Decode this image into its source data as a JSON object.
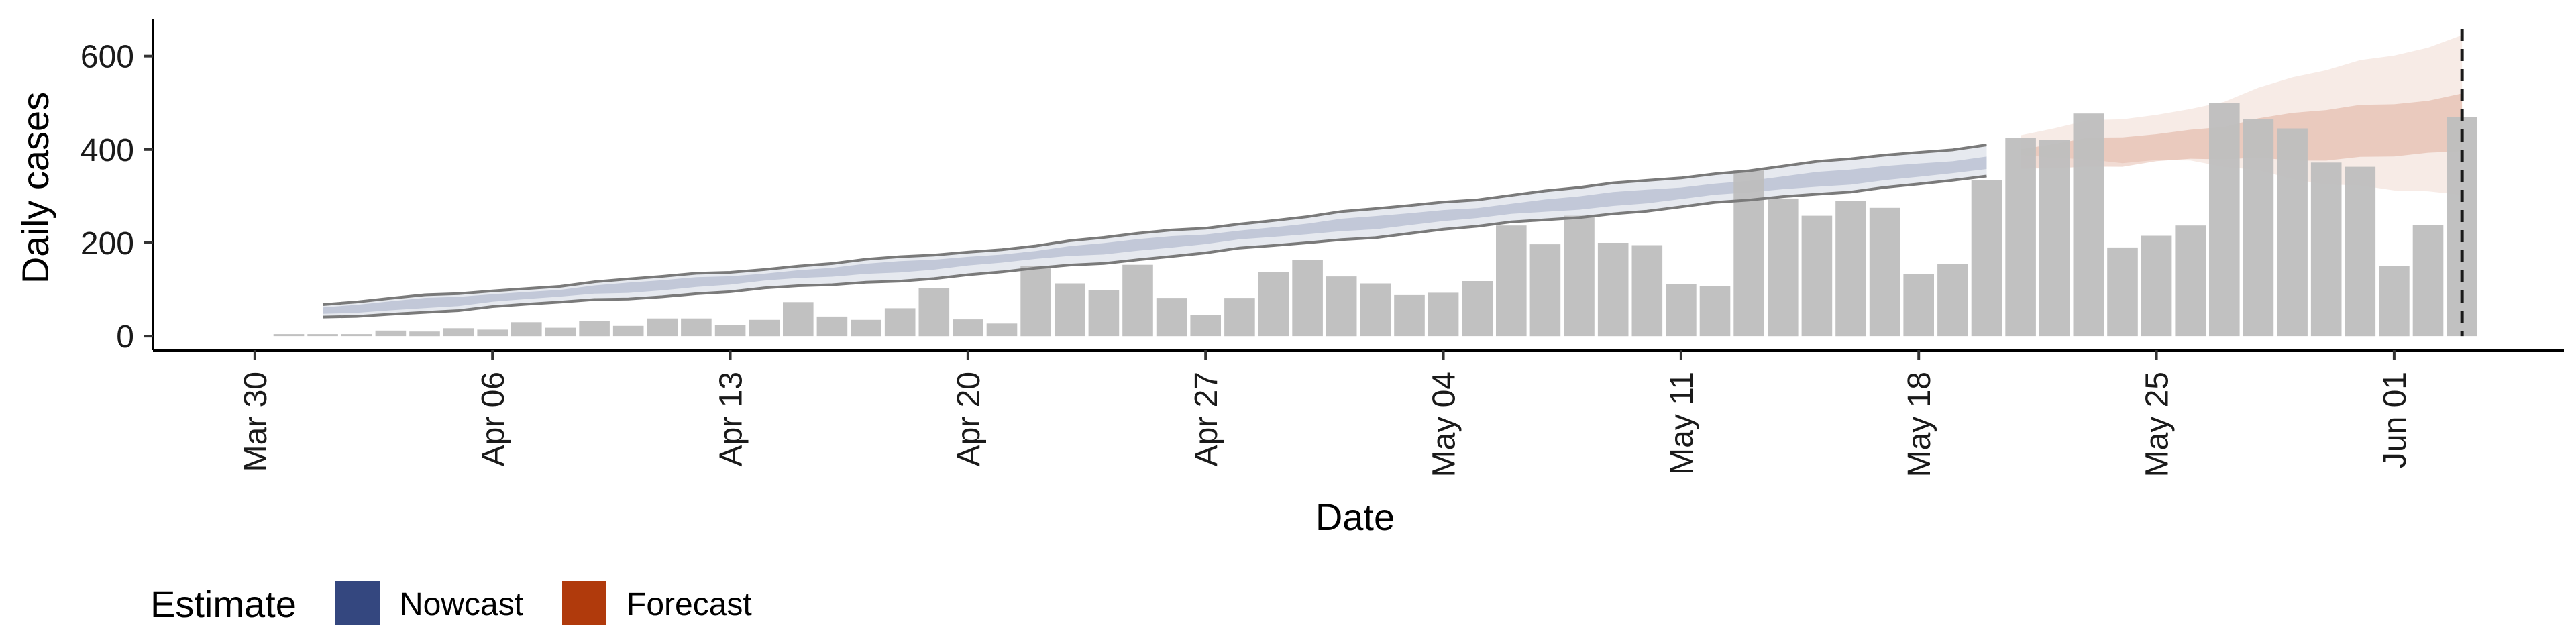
{
  "chart_data": {
    "type": "bar",
    "xlabel": "Date",
    "ylabel": "Daily cases",
    "x_ticks": [
      "Mar 30",
      "Apr 06",
      "Apr 13",
      "Apr 20",
      "Apr 27",
      "May 04",
      "May 11",
      "May 18",
      "May 25",
      "Jun 01"
    ],
    "y_ticks": [
      "0",
      "200",
      "400",
      "600"
    ],
    "ylim": [
      -30,
      680
    ],
    "xlim": [
      "2020-03-27",
      "2020-06-06"
    ],
    "legend": {
      "title": "Estimate",
      "position": "bottom-left",
      "items": [
        {
          "label": "Nowcast",
          "color": "#34477f"
        },
        {
          "label": "Forecast",
          "color": "#b03a0c"
        }
      ]
    },
    "bars": {
      "start_date": "2020-03-31",
      "color": "#bebebe",
      "values": [
        3,
        0,
        4,
        12,
        10,
        17,
        14,
        30,
        18,
        33,
        22,
        38,
        38,
        24,
        35,
        73,
        42,
        35,
        60,
        103,
        36,
        27,
        150,
        113,
        98,
        153,
        82,
        45,
        82,
        137,
        163,
        128,
        113,
        88,
        93,
        118,
        237,
        197,
        258,
        200,
        195,
        112,
        108,
        355,
        295,
        258,
        290,
        275,
        133,
        155,
        335,
        425,
        420,
        477,
        190,
        215,
        237,
        500,
        465,
        445,
        372,
        363,
        150,
        238,
        470
      ]
    },
    "nowcast": {
      "start_date": "2020-04-01",
      "end_date": "2020-05-20",
      "color": "#34477f",
      "lower_90": [
        {
          "date": "2020-04-01",
          "y": 38
        },
        {
          "date": "2020-04-20",
          "y": 130
        },
        {
          "date": "2020-05-20",
          "y": 340
        }
      ],
      "lower_50": [
        {
          "date": "2020-04-01",
          "y": 45
        },
        {
          "date": "2020-04-20",
          "y": 150
        },
        {
          "date": "2020-05-20",
          "y": 355
        }
      ],
      "upper_50": [
        {
          "date": "2020-04-01",
          "y": 62
        },
        {
          "date": "2020-04-20",
          "y": 170
        },
        {
          "date": "2020-05-20",
          "y": 385
        }
      ],
      "upper_90": [
        {
          "date": "2020-04-01",
          "y": 68
        },
        {
          "date": "2020-04-20",
          "y": 180
        },
        {
          "date": "2020-05-20",
          "y": 410
        }
      ]
    },
    "forecast": {
      "start_date": "2020-05-21",
      "end_date": "2020-06-03",
      "color": "#b03a0c",
      "lower_90": [
        {
          "date": "2020-05-21",
          "y": 390
        },
        {
          "date": "2020-05-26",
          "y": 370
        },
        {
          "date": "2020-06-03",
          "y": 295
        }
      ],
      "lower_50": [
        {
          "date": "2020-05-21",
          "y": 360
        },
        {
          "date": "2020-05-26",
          "y": 375
        },
        {
          "date": "2020-06-03",
          "y": 390
        }
      ],
      "upper_50": [
        {
          "date": "2020-05-21",
          "y": 400
        },
        {
          "date": "2020-05-26",
          "y": 445
        },
        {
          "date": "2020-06-03",
          "y": 520
        }
      ],
      "upper_90": [
        {
          "date": "2020-05-21",
          "y": 430
        },
        {
          "date": "2020-05-26",
          "y": 490
        },
        {
          "date": "2020-06-03",
          "y": 645
        }
      ]
    },
    "vline_date": "2020-06-03"
  }
}
